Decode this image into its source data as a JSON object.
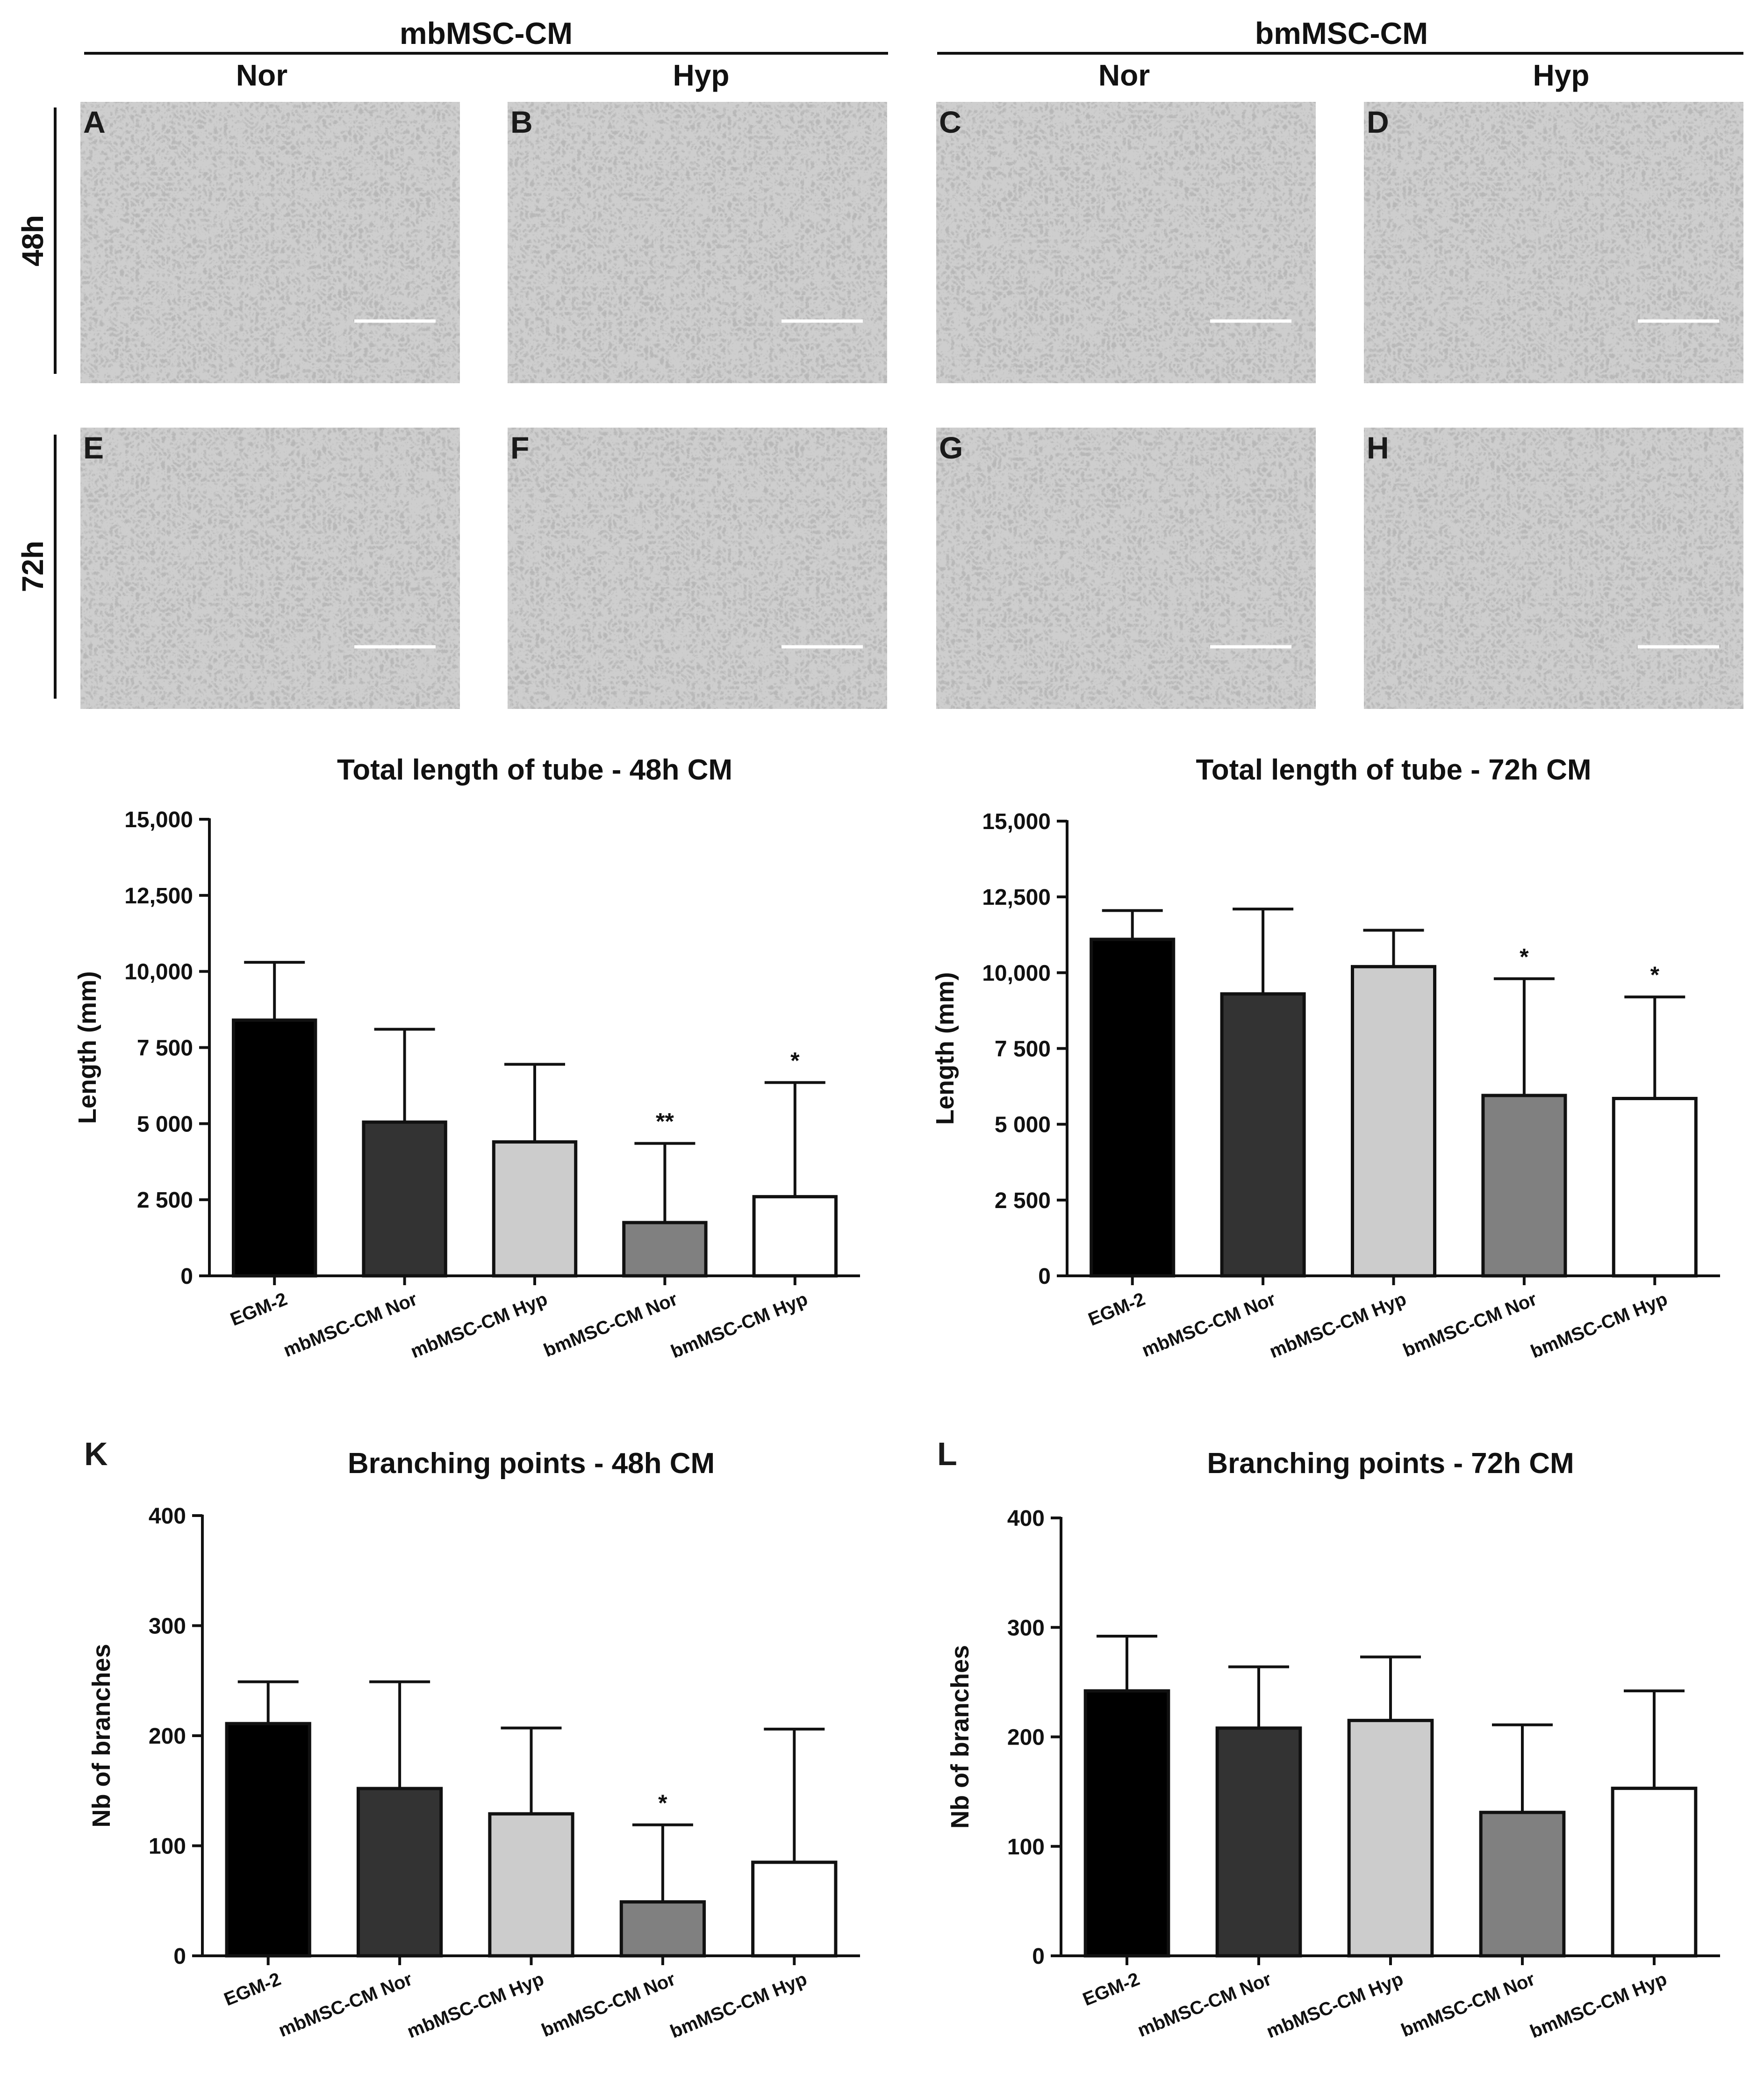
{
  "micrographs": {
    "group_headers": [
      "mbMSC-CM",
      "bmMSC-CM"
    ],
    "column_labels": [
      "Nor",
      "Hyp",
      "Nor",
      "Hyp"
    ],
    "row_labels": [
      "48h",
      "72h"
    ],
    "panel_letters": [
      "A",
      "B",
      "C",
      "D",
      "E",
      "F",
      "G",
      "H"
    ]
  },
  "colors": {
    "EGM-2": "#000000",
    "mbMSC-CM Nor": "#333333",
    "mbMSC-CM Hyp": "#cccccc",
    "bmMSC-CM Nor": "#808080",
    "bmMSC-CM Hyp": "#ffffff"
  },
  "chart_data": [
    {
      "type": "bar",
      "panel_letter": "",
      "title": "Total length of tube - 48h CM",
      "ylabel": "Length (mm)",
      "xlabel": "",
      "categories": [
        "EGM-2",
        "mbMSC-CM Nor",
        "mbMSC-CM Hyp",
        "bmMSC-CM Nor",
        "bmMSC-CM Hyp"
      ],
      "values": [
        8400,
        5050,
        4400,
        1750,
        2600
      ],
      "errors": [
        1900,
        3050,
        2550,
        2600,
        3750
      ],
      "significance": [
        "",
        "",
        "",
        "**",
        "*"
      ],
      "ylim": [
        0,
        15000
      ],
      "yticks": [
        0,
        2500,
        5000,
        7500,
        10000,
        12500,
        15000
      ],
      "ytick_labels": [
        "0",
        "2 500",
        "5 000",
        "7 500",
        "10,000",
        "12,500",
        "15,000"
      ]
    },
    {
      "type": "bar",
      "panel_letter": "",
      "title": "Total length of tube - 72h CM",
      "ylabel": "Length (mm)",
      "xlabel": "",
      "categories": [
        "EGM-2",
        "mbMSC-CM Nor",
        "mbMSC-CM Hyp",
        "bmMSC-CM Nor",
        "bmMSC-CM Hyp"
      ],
      "values": [
        11100,
        9300,
        10200,
        5950,
        5850
      ],
      "errors": [
        950,
        2800,
        1200,
        3850,
        3350
      ],
      "significance": [
        "",
        "",
        "",
        "*",
        "*"
      ],
      "ylim": [
        0,
        15000
      ],
      "yticks": [
        0,
        2500,
        5000,
        7500,
        10000,
        12500,
        15000
      ],
      "ytick_labels": [
        "0",
        "2 500",
        "5 000",
        "7 500",
        "10,000",
        "12,500",
        "15,000"
      ]
    },
    {
      "type": "bar",
      "panel_letter": "K",
      "title": "Branching points - 48h CM",
      "ylabel": "Nb of branches",
      "xlabel": "",
      "categories": [
        "EGM-2",
        "mbMSC-CM Nor",
        "mbMSC-CM Hyp",
        "bmMSC-CM Nor",
        "bmMSC-CM Hyp"
      ],
      "values": [
        211,
        152,
        129,
        49,
        85
      ],
      "errors": [
        38,
        97,
        78,
        70,
        121
      ],
      "significance": [
        "",
        "",
        "",
        "*",
        ""
      ],
      "ylim": [
        0,
        400
      ],
      "yticks": [
        0,
        100,
        200,
        300,
        400
      ],
      "ytick_labels": [
        "0",
        "100",
        "200",
        "300",
        "400"
      ]
    },
    {
      "type": "bar",
      "panel_letter": "L",
      "title": "Branching points - 72h CM",
      "ylabel": "Nb of branches",
      "xlabel": "",
      "categories": [
        "EGM-2",
        "mbMSC-CM Nor",
        "mbMSC-CM Hyp",
        "bmMSC-CM Nor",
        "bmMSC-CM Hyp"
      ],
      "values": [
        242,
        208,
        215,
        131,
        153
      ],
      "errors": [
        50,
        56,
        58,
        80,
        89
      ],
      "significance": [
        "",
        "",
        "",
        "",
        ""
      ],
      "ylim": [
        0,
        400
      ],
      "yticks": [
        0,
        100,
        200,
        300,
        400
      ],
      "ytick_labels": [
        "0",
        "100",
        "200",
        "300",
        "400"
      ]
    }
  ]
}
